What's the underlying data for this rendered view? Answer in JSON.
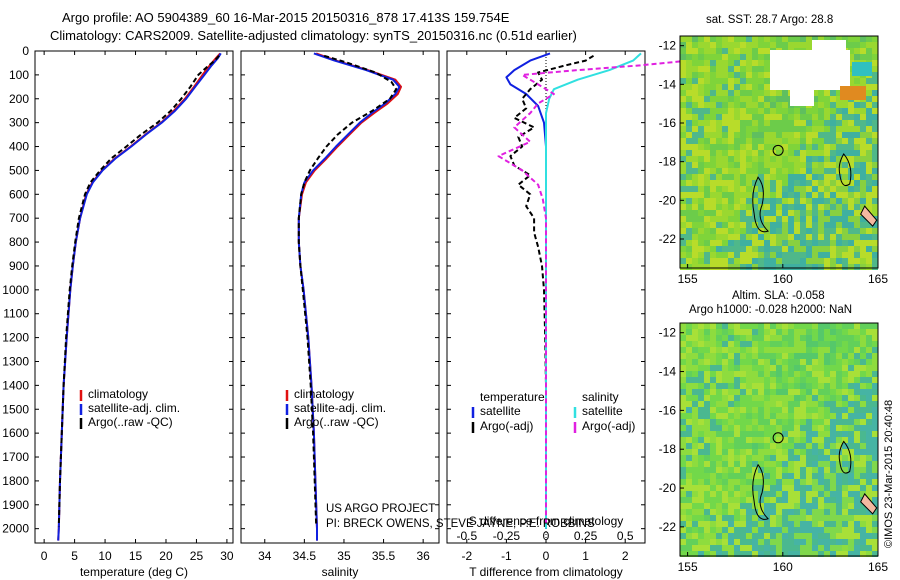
{
  "titles": {
    "line1": "Argo profile: AO 5904389_60 16-Mar-2015 20150316_878 17.413S 159.754E",
    "line2": "Climatology: CARS2009. Satellite-adjusted climatology: synTS_20150316.nc (0.51d earlier)"
  },
  "project": {
    "line1": "US ARGO PROJECT",
    "line2": "PI: BRECK OWENS, STEVE JAYNE, P.E. ROBBINS"
  },
  "depth_axis": {
    "ticks": [
      0,
      100,
      200,
      300,
      400,
      500,
      600,
      700,
      800,
      900,
      1000,
      1100,
      1200,
      1300,
      1400,
      1500,
      1600,
      1700,
      1800,
      1900,
      2000
    ],
    "ylim": [
      0,
      2060
    ]
  },
  "colors": {
    "climatology": "#e01010",
    "satellite": "#1020e0",
    "argo": "#000000",
    "sal_satellite": "#30e0e0",
    "sal_argo": "#e020e0"
  },
  "chart_data": [
    {
      "type": "line",
      "xlabel": "temperature (deg C)",
      "ylabel": "",
      "xlim": [
        -1.5,
        31
      ],
      "xticks": [
        0,
        5,
        10,
        15,
        20,
        25,
        30
      ],
      "legend": [
        "climatology",
        "satellite-adj. clim.",
        "Argo(..raw -QC)"
      ],
      "series": [
        {
          "name": "climatology",
          "color": "#e01010",
          "depth": [
            10,
            30,
            60,
            100,
            150,
            200,
            250,
            300,
            350,
            400,
            450,
            500,
            550,
            600,
            700,
            800,
            900,
            1000,
            1200,
            1400,
            1600,
            1800,
            2000,
            2050
          ],
          "values": [
            28.9,
            28.2,
            27.2,
            26.0,
            24.6,
            23.1,
            21.3,
            19.2,
            16.6,
            14.2,
            11.6,
            9.5,
            7.9,
            6.9,
            5.9,
            5.2,
            4.7,
            4.3,
            3.7,
            3.2,
            2.9,
            2.6,
            2.4,
            2.3
          ]
        },
        {
          "name": "satellite-adj. clim.",
          "color": "#1020e0",
          "depth": [
            10,
            30,
            60,
            100,
            150,
            200,
            250,
            300,
            350,
            400,
            450,
            500,
            550,
            600,
            700,
            800,
            900,
            1000,
            1200,
            1400,
            1600,
            1800,
            2000,
            2050
          ],
          "values": [
            29.0,
            28.5,
            27.5,
            26.3,
            24.8,
            23.3,
            21.5,
            19.3,
            16.7,
            14.3,
            11.7,
            9.6,
            8.0,
            7.0,
            5.9,
            5.2,
            4.7,
            4.3,
            3.7,
            3.2,
            2.9,
            2.6,
            2.4,
            2.3
          ]
        },
        {
          "name": "Argo(..raw -QC)",
          "color": "#000000",
          "dashed": true,
          "depth": [
            20,
            40,
            70,
            100,
            150,
            200,
            250,
            300,
            350,
            400,
            450,
            500,
            550,
            600,
            700,
            800,
            900,
            1000,
            1200,
            1400,
            1600,
            1800,
            1990
          ],
          "values": [
            28.7,
            28.0,
            26.6,
            25.3,
            24.0,
            22.5,
            20.8,
            18.6,
            15.9,
            13.5,
            11.0,
            9.2,
            7.6,
            6.7,
            5.7,
            5.1,
            4.6,
            4.2,
            3.6,
            3.2,
            2.9,
            2.6,
            2.4
          ]
        }
      ]
    },
    {
      "type": "line",
      "xlabel": "salinity",
      "ylabel": "",
      "xlim": [
        33.7,
        36.2
      ],
      "xticks": [
        34,
        34.5,
        35,
        35.5,
        36
      ],
      "legend": [
        "climatology",
        "satellite-adj. clim.",
        "Argo(..raw -QC)"
      ],
      "series": [
        {
          "name": "climatology",
          "color": "#e01010",
          "depth": [
            10,
            40,
            80,
            120,
            150,
            180,
            220,
            260,
            300,
            350,
            400,
            450,
            500,
            550,
            600,
            700,
            800,
            900,
            1000,
            1200,
            1400,
            1600,
            1800,
            2000,
            2050
          ],
          "values": [
            34.65,
            34.9,
            35.3,
            35.65,
            35.72,
            35.68,
            35.55,
            35.38,
            35.22,
            35.07,
            34.92,
            34.78,
            34.63,
            34.52,
            34.47,
            34.43,
            34.43,
            34.45,
            34.49,
            34.55,
            34.59,
            34.62,
            34.64,
            34.66,
            34.66
          ]
        },
        {
          "name": "satellite-adj. clim.",
          "color": "#1020e0",
          "depth": [
            10,
            40,
            80,
            120,
            150,
            180,
            220,
            260,
            300,
            350,
            400,
            450,
            500,
            550,
            600,
            700,
            800,
            900,
            1000,
            1200,
            1400,
            1600,
            1800,
            2000,
            2050
          ],
          "values": [
            34.62,
            34.88,
            35.28,
            35.62,
            35.7,
            35.65,
            35.52,
            35.35,
            35.2,
            35.05,
            34.9,
            34.76,
            34.61,
            34.5,
            34.46,
            34.43,
            34.43,
            34.45,
            34.49,
            34.55,
            34.59,
            34.62,
            34.64,
            34.66,
            34.66
          ]
        },
        {
          "name": "Argo(..raw -QC)",
          "color": "#000000",
          "dashed": true,
          "depth": [
            20,
            50,
            90,
            130,
            160,
            200,
            250,
            300,
            350,
            400,
            450,
            500,
            550,
            600,
            700,
            800,
            900,
            1000,
            1200,
            1400,
            1600,
            1800,
            1990
          ],
          "values": [
            34.75,
            35.05,
            35.4,
            35.6,
            35.66,
            35.58,
            35.36,
            35.1,
            34.92,
            34.78,
            34.67,
            34.57,
            34.5,
            34.46,
            34.43,
            34.43,
            34.45,
            34.48,
            34.54,
            34.58,
            34.61,
            34.63,
            34.65
          ]
        }
      ]
    },
    {
      "type": "line",
      "xlabel": "T difference from climatology",
      "xlabel_top": "S difference from climatology",
      "ylabel": "",
      "xlim": [
        -2.5,
        2.5
      ],
      "xticks": [
        -2,
        -1,
        0,
        1,
        2
      ],
      "xticks_sal": [
        -0.5,
        -0.25,
        0,
        0.25,
        0.5
      ],
      "legend_titles": [
        "temperature",
        "salinity"
      ],
      "legend": [
        "satellite",
        "Argo(-adj)",
        "satellite",
        "Argo(-adj)"
      ],
      "series": [
        {
          "name": "temperature satellite",
          "color": "#1020e0",
          "depth": [
            10,
            40,
            80,
            110,
            140,
            180,
            230,
            300,
            400,
            500,
            600,
            700,
            800,
            900,
            1000,
            1200,
            1400,
            1600,
            1800,
            2000
          ],
          "values": [
            0.1,
            -0.4,
            -0.8,
            -1.0,
            -0.9,
            -0.5,
            -0.2,
            -0.05,
            0.0,
            0.0,
            0.0,
            0.0,
            0.0,
            0.0,
            0.0,
            0.0,
            0.0,
            0.0,
            0.0,
            0.0
          ]
        },
        {
          "name": "temperature Argo(-adj)",
          "color": "#000000",
          "dashed": true,
          "depth": [
            20,
            40,
            60,
            90,
            120,
            160,
            200,
            240,
            280,
            320,
            360,
            400,
            440,
            480,
            520,
            560,
            600,
            650,
            700,
            760,
            820,
            900,
            1000,
            1200,
            1400,
            1600,
            1800,
            1990
          ],
          "values": [
            1.2,
            1.0,
            0.5,
            -0.2,
            -0.1,
            -0.4,
            -0.6,
            -0.5,
            -0.8,
            -0.3,
            -0.7,
            -0.6,
            -0.9,
            -0.8,
            -0.4,
            -0.7,
            -0.4,
            -0.5,
            -0.3,
            -0.3,
            -0.2,
            -0.1,
            -0.05,
            -0.02,
            0.0,
            0.0,
            0.0,
            0.0
          ]
        },
        {
          "name": "salinity satellite",
          "color": "#30e0e0",
          "depth": [
            10,
            40,
            80,
            120,
            160,
            200,
            260,
            320,
            400,
            500,
            600,
            700,
            800,
            1000,
            1200,
            1400,
            1600,
            1800,
            2000
          ],
          "values": [
            0.6,
            0.55,
            0.4,
            0.2,
            0.05,
            0.02,
            0.0,
            0.0,
            0.0,
            0.0,
            0.0,
            0.0,
            0.0,
            0.0,
            0.0,
            0.0,
            0.0,
            0.0,
            0.0
          ]
        },
        {
          "name": "salinity Argo(-adj)",
          "color": "#e020e0",
          "dashed": true,
          "depth": [
            20,
            40,
            60,
            80,
            100,
            140,
            180,
            220,
            260,
            320,
            380,
            440,
            500,
            560,
            620,
            700,
            800,
            900,
            1000,
            1200,
            1400,
            1600,
            1800,
            1990
          ],
          "values": [
            1.2,
            0.9,
            0.6,
            0.2,
            -0.15,
            -0.05,
            0.05,
            -0.05,
            -0.1,
            -0.2,
            -0.1,
            -0.3,
            -0.15,
            -0.05,
            -0.02,
            0.0,
            0.0,
            0.0,
            0.0,
            0.0,
            0.0,
            0.0,
            0.0,
            0.0
          ]
        }
      ]
    }
  ],
  "maps": {
    "sst": {
      "title": "sat. SST: 28.7  Argo: 28.8",
      "yticks": [
        -12,
        -14,
        -16,
        -18,
        -20,
        -22
      ],
      "xticks": [
        155,
        160,
        165
      ],
      "xlim": [
        154.6,
        165
      ],
      "ylim": [
        -23.5,
        -11.5
      ],
      "argo_position": [
        159.754,
        -17.413
      ]
    },
    "sla": {
      "title_line1": "Altim. SLA: -0.058",
      "title_line2": "Argo h1000: -0.028  h2000: NaN",
      "yticks": [
        -12,
        -14,
        -16,
        -18,
        -20,
        -22
      ],
      "xticks": [
        155,
        160,
        165
      ],
      "xlim": [
        154.6,
        165
      ],
      "ylim": [
        -23.5,
        -11.5
      ],
      "argo_position": [
        159.754,
        -17.413
      ]
    }
  },
  "watermark": "©IMOS 23-Mar-2015 20:40:48"
}
